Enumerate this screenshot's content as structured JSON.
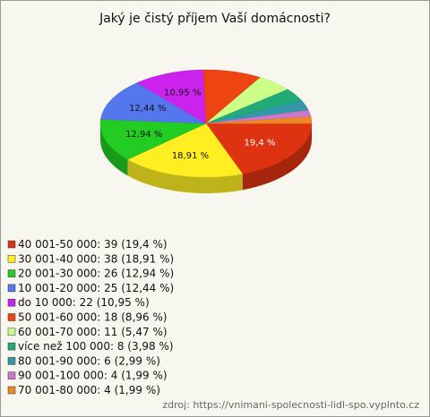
{
  "chart_data": {
    "type": "pie",
    "title": "Jaký je čistý příjem Vaší domácnosti?",
    "categories": [
      "40 001-50 000: 39 (19,4 %)",
      "30 001-40 000: 38 (18,91 %)",
      "20 001-30 000: 26 (12,94 %)",
      "10 001-20 000: 25 (12,44 %)",
      "do 10 000: 22 (10,95 %)",
      "50 001-60 000: 18 (8,96 %)",
      "60 001-70 000: 11 (5,47 %)",
      "více než 100 000: 8 (3,98 %)",
      "80 001-90 000: 6 (2,99 %)",
      "90 001-100 000: 4 (1,99 %)",
      "70 001-80 000: 4 (1,99 %)"
    ],
    "values": [
      19.4,
      18.91,
      12.94,
      12.44,
      10.95,
      8.96,
      5.47,
      3.98,
      2.99,
      1.99,
      1.99
    ],
    "value_labels": [
      "19,4 %",
      "18,91 %",
      "12,94 %",
      "12,44 %",
      "10,95 %",
      null,
      null,
      null,
      null,
      null,
      null
    ],
    "colors": [
      "#dd3311",
      "#ffee22",
      "#22cc22",
      "#5577ee",
      "#cc22ee",
      "#ee4411",
      "#ccff88",
      "#22aa77",
      "#3399aa",
      "#cc77cc",
      "#ee8822"
    ],
    "source": "zdroj: https://vnimani-spolecnosti-lidl-spo.vyplnto.cz"
  }
}
